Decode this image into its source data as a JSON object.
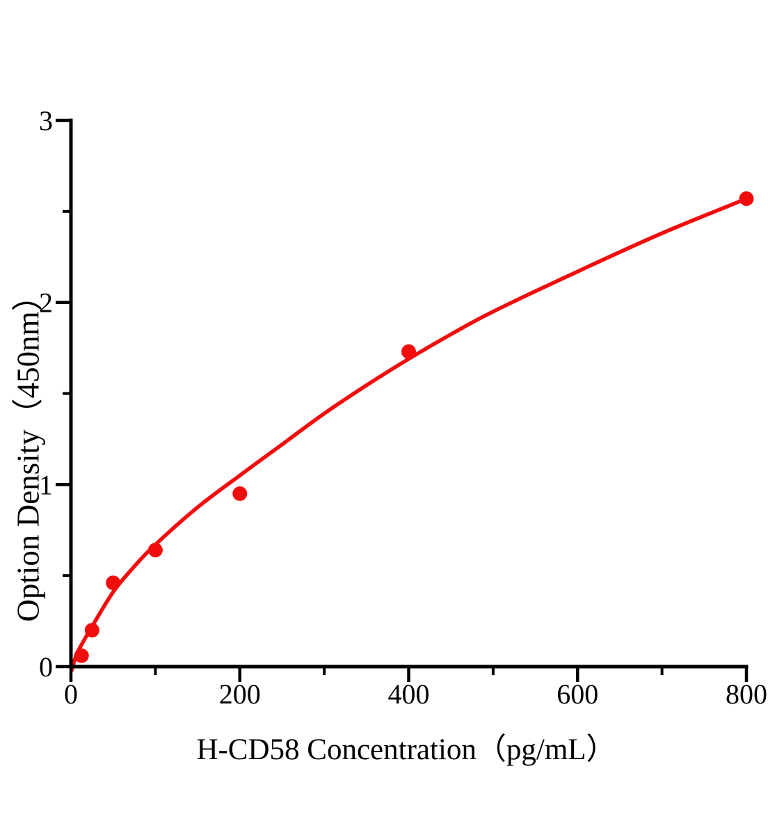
{
  "page": {
    "background": "#ffffff"
  },
  "chart_data": {
    "type": "scatter",
    "title": "",
    "xlabel": "H-CD58 Concentration（pg/mL）",
    "ylabel": "Option Density（450nm）",
    "xlim": [
      0,
      800
    ],
    "ylim": [
      0,
      3
    ],
    "x_ticks_major": [
      0,
      200,
      400,
      600,
      800
    ],
    "x_ticks_minor": [
      100,
      300,
      500,
      700
    ],
    "y_ticks_major": [
      0,
      1,
      2,
      3
    ],
    "y_ticks_minor": [
      0.5,
      1.5,
      2.5
    ],
    "grid": false,
    "legend": null,
    "axis_color": "#000000",
    "accent_color": "#f20d0d",
    "series": [
      {
        "name": "standard-data-points",
        "type": "scatter",
        "color": "#f20d0d",
        "marker": "circle",
        "points": [
          {
            "x": 12.5,
            "y": 0.06
          },
          {
            "x": 25,
            "y": 0.2
          },
          {
            "x": 50,
            "y": 0.46
          },
          {
            "x": 100,
            "y": 0.64
          },
          {
            "x": 200,
            "y": 0.95
          },
          {
            "x": 400,
            "y": 1.73
          },
          {
            "x": 800,
            "y": 2.57
          }
        ]
      },
      {
        "name": "fitted-standard-curve",
        "type": "line",
        "color": "#f20d0d",
        "points": [
          [
            1,
            -0.02
          ],
          [
            6,
            0.06
          ],
          [
            12.5,
            0.12
          ],
          [
            25,
            0.22
          ],
          [
            50,
            0.41
          ],
          [
            75,
            0.55
          ],
          [
            100,
            0.67
          ],
          [
            150,
            0.875
          ],
          [
            200,
            1.05
          ],
          [
            250,
            1.22
          ],
          [
            300,
            1.39
          ],
          [
            350,
            1.545
          ],
          [
            400,
            1.69
          ],
          [
            450,
            1.825
          ],
          [
            500,
            1.95
          ],
          [
            600,
            2.17
          ],
          [
            700,
            2.38
          ],
          [
            800,
            2.57
          ]
        ]
      }
    ]
  }
}
